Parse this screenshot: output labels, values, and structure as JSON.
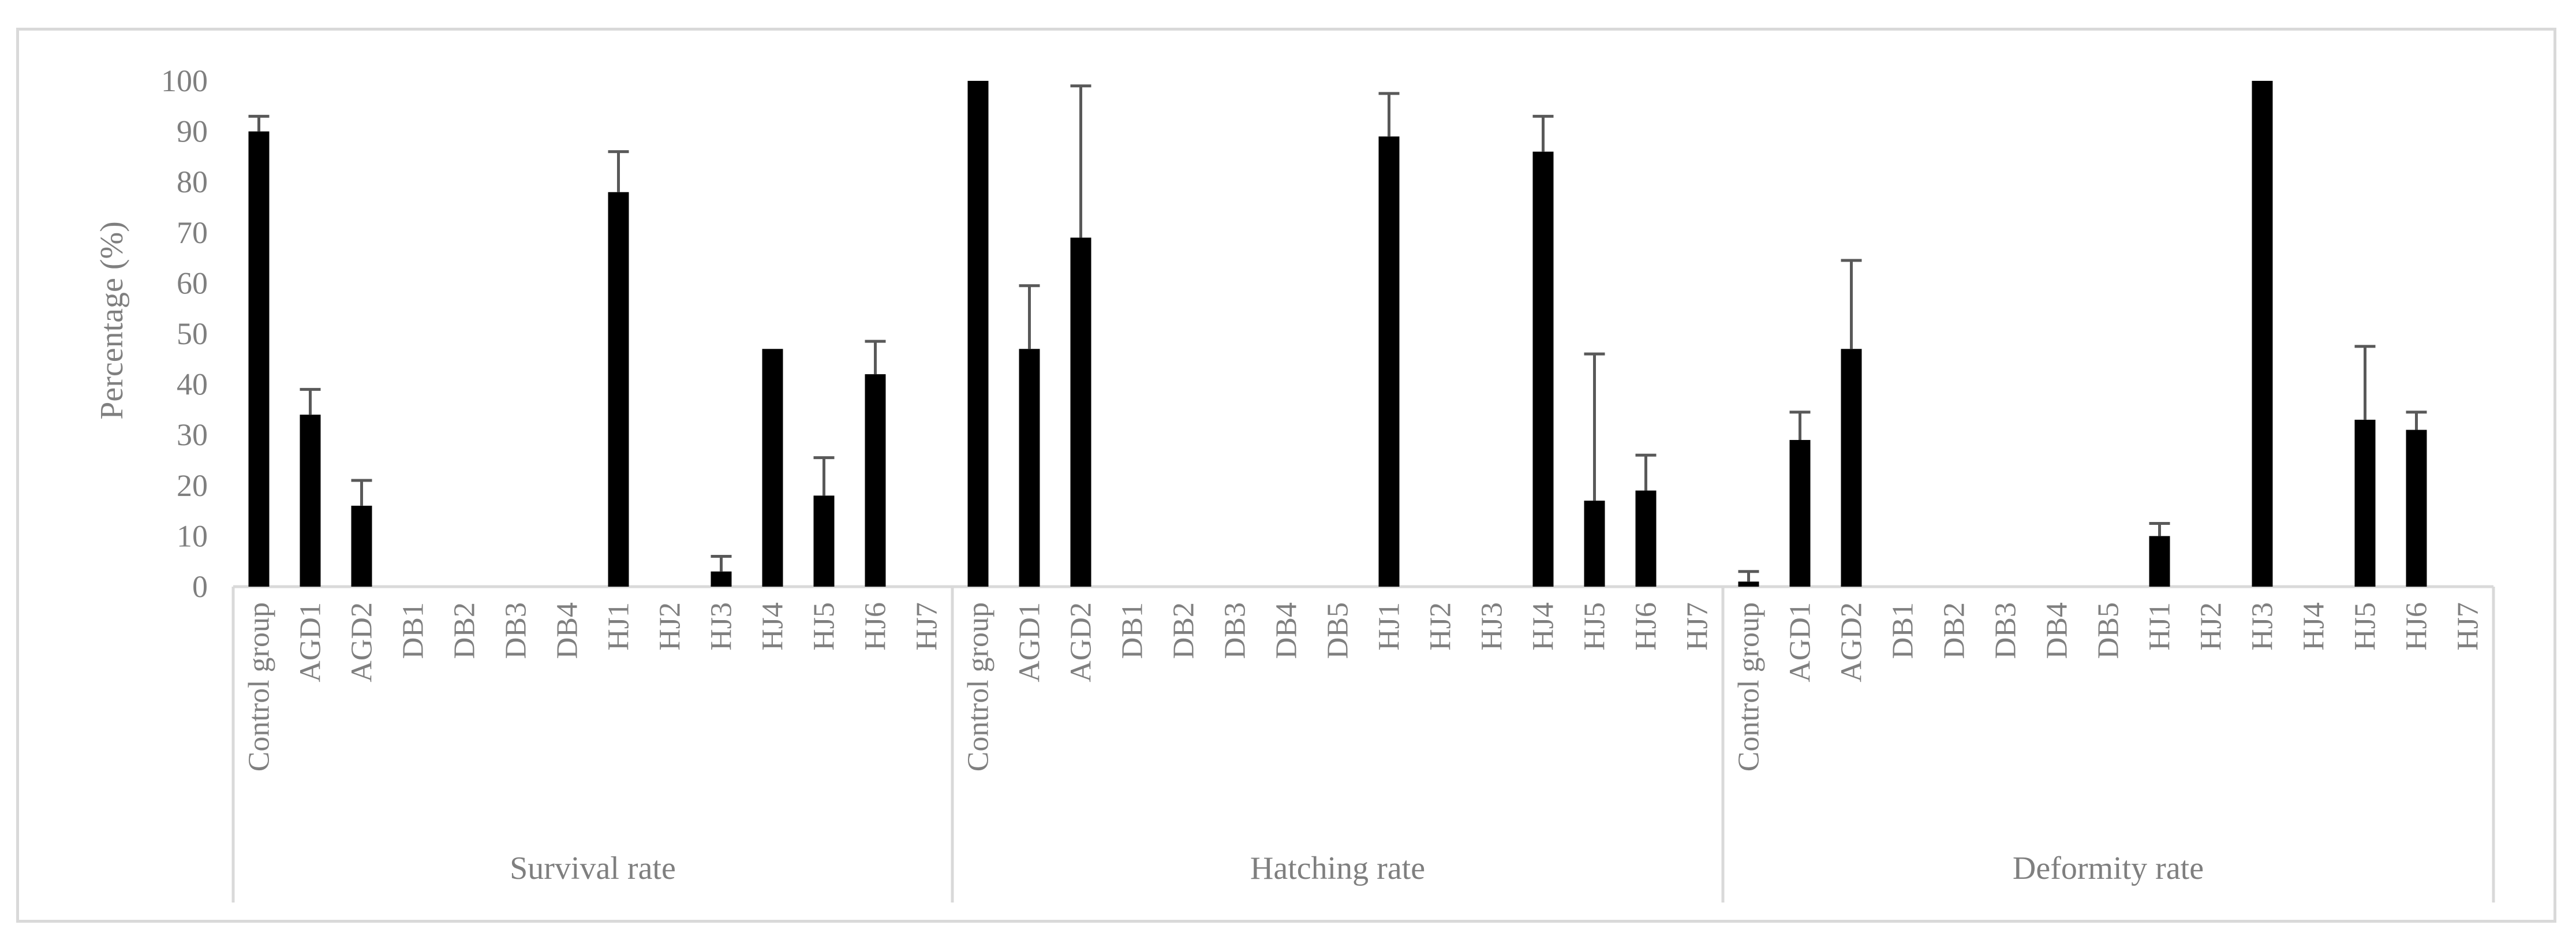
{
  "chart_data": {
    "type": "bar",
    "ylabel": "Percentage (%)",
    "xlabel": "",
    "ylim": [
      0,
      100
    ],
    "yticks": [
      0,
      10,
      20,
      30,
      40,
      50,
      60,
      70,
      80,
      90,
      100
    ],
    "grid": false,
    "legend": "none",
    "bar_color": "#000000",
    "error_bar_color": "#595959",
    "groups": [
      {
        "name": "Survival rate",
        "categories": [
          "Control group",
          "AGD1",
          "AGD2",
          "DB1",
          "DB2",
          "DB3",
          "DB4",
          "HJ1",
          "HJ2",
          "HJ3",
          "HJ4",
          "HJ5",
          "HJ6",
          "HJ7"
        ],
        "values": [
          90,
          34,
          16,
          0,
          0,
          0,
          0,
          78,
          0,
          3,
          47,
          18,
          42,
          0
        ],
        "errors": [
          3,
          5,
          5,
          0,
          0,
          0,
          0,
          8,
          0,
          3,
          0,
          7.5,
          6.5,
          0
        ]
      },
      {
        "name": "Hatching rate",
        "categories": [
          "Control group",
          "AGD1",
          "AGD2",
          "DB1",
          "DB2",
          "DB3",
          "DB4",
          "DB5",
          "HJ1",
          "HJ2",
          "HJ3",
          "HJ4",
          "HJ5",
          "HJ6",
          "HJ7"
        ],
        "values": [
          100,
          47,
          69,
          0,
          0,
          0,
          0,
          0,
          89,
          0,
          0,
          86,
          17,
          19,
          0
        ],
        "errors": [
          0,
          12.5,
          30,
          0,
          0,
          0,
          0,
          0,
          8.5,
          0,
          0,
          7,
          29,
          7,
          0
        ]
      },
      {
        "name": "Deformity rate",
        "categories": [
          "Control group",
          "AGD1",
          "AGD2",
          "DB1",
          "DB2",
          "DB3",
          "DB4",
          "DB5",
          "HJ1",
          "HJ2",
          "HJ3",
          "HJ4",
          "HJ5",
          "HJ6",
          "HJ7"
        ],
        "values": [
          1,
          29,
          47,
          0,
          0,
          0,
          0,
          0,
          10,
          0,
          100,
          0,
          33,
          31,
          0
        ],
        "errors": [
          2,
          5.5,
          17.5,
          0,
          0,
          0,
          0,
          0,
          2.5,
          0,
          0,
          0,
          14.5,
          3.5,
          0
        ]
      }
    ]
  }
}
